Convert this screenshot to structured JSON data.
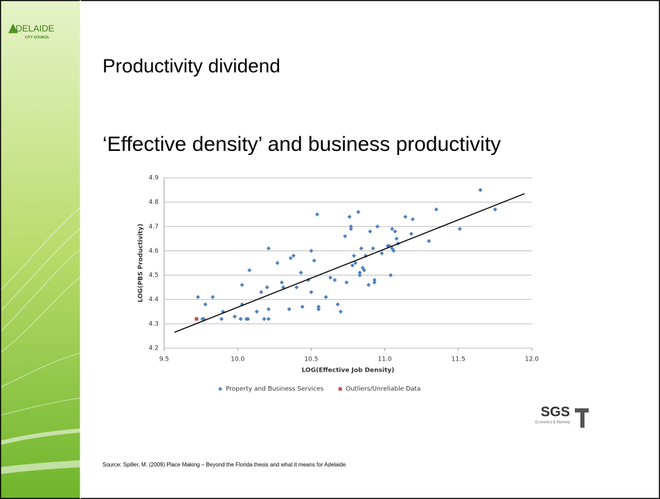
{
  "logo": {
    "name": "ADELAIDE",
    "subtitle": "CITY COUNCIL"
  },
  "title": "Productivity dividend",
  "subtitle": "‘Effective density’ and business productivity",
  "chart_data": {
    "type": "scatter",
    "xlabel": "LOG(Effective Job Density)",
    "ylabel": "LOG(PBS Productivity)",
    "xlim": [
      9.5,
      12
    ],
    "ylim": [
      4.2,
      4.9
    ],
    "xticks": [
      9.5,
      {
        "value": 10,
        "label": "10.0"
      },
      10.5,
      {
        "value": 11,
        "label": "11.0"
      },
      11.5,
      {
        "value": 12,
        "label": "12.0"
      }
    ],
    "yticks": [
      4.2,
      4.3,
      4.4,
      4.5,
      4.6,
      4.7,
      4.8,
      4.9
    ],
    "grid": true,
    "legend": "bottom",
    "series": [
      {
        "name": "Property and Business Services",
        "color": "#4f81bd",
        "marker": "diamond",
        "x": [
          9.73,
          9.76,
          9.77,
          9.78,
          9.83,
          9.89,
          9.9,
          9.98,
          10.02,
          10.03,
          10.03,
          10.06,
          10.07,
          10.08,
          10.13,
          10.16,
          10.18,
          10.2,
          10.21,
          10.21,
          10.21,
          10.27,
          10.3,
          10.31,
          10.35,
          10.36,
          10.38,
          10.4,
          10.43,
          10.44,
          10.48,
          10.5,
          10.5,
          10.52,
          10.54,
          10.55,
          10.55,
          10.6,
          10.63,
          10.66,
          10.68,
          10.7,
          10.73,
          10.74,
          10.76,
          10.77,
          10.77,
          10.78,
          10.79,
          10.8,
          10.82,
          10.83,
          10.83,
          10.84,
          10.85,
          10.86,
          10.87,
          10.89,
          10.9,
          10.92,
          10.93,
          10.93,
          10.95,
          10.98,
          11.02,
          11.03,
          11.04,
          11.05,
          11.05,
          11.06,
          11.07,
          11.08,
          11.09,
          11.14,
          11.18,
          11.19,
          11.3,
          11.35,
          11.51,
          11.65,
          11.75
        ],
        "values": [
          4.41,
          4.32,
          4.32,
          4.38,
          4.41,
          4.32,
          4.35,
          4.33,
          4.32,
          4.38,
          4.46,
          4.32,
          4.32,
          4.52,
          4.35,
          4.43,
          4.32,
          4.45,
          4.61,
          4.36,
          4.32,
          4.55,
          4.47,
          4.45,
          4.36,
          4.57,
          4.58,
          4.45,
          4.51,
          4.37,
          4.48,
          4.6,
          4.43,
          4.56,
          4.75,
          4.36,
          4.37,
          4.41,
          4.49,
          4.48,
          4.38,
          4.35,
          4.66,
          4.47,
          4.74,
          4.7,
          4.69,
          4.54,
          4.58,
          4.55,
          4.76,
          4.5,
          4.51,
          4.61,
          4.53,
          4.52,
          4.58,
          4.46,
          4.68,
          4.61,
          4.47,
          4.48,
          4.7,
          4.59,
          4.62,
          4.62,
          4.5,
          4.69,
          4.61,
          4.6,
          4.68,
          4.65,
          4.63,
          4.74,
          4.67,
          4.73,
          4.64,
          4.77,
          4.69,
          4.85,
          4.77
        ]
      },
      {
        "name": "Outliers/Unreliable Data",
        "color": "#c0504d",
        "marker": "square",
        "x": [
          9.72
        ],
        "values": [
          4.32
        ]
      }
    ],
    "trendline": {
      "color": "#000000",
      "x": [
        9.57,
        11.95
      ],
      "values": [
        4.265,
        4.835
      ]
    }
  },
  "brand": {
    "name": "SGS",
    "tagline": "Economics & Planning"
  },
  "source": "Source: Spiller, M. (2009) Place Making – Beyond the Florida thesis and what it means for Adelaide"
}
